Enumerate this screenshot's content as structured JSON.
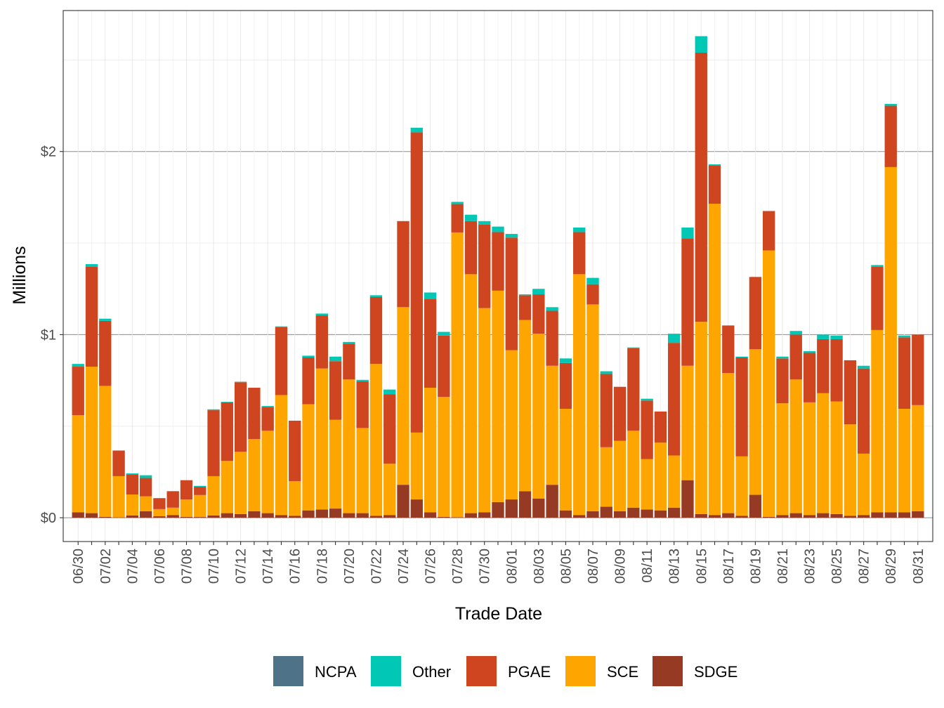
{
  "chart_data": {
    "type": "bar",
    "stacked": true,
    "xlabel": "Trade Date",
    "ylabel": "Millions",
    "ylim": [
      -0.13,
      2.77
    ],
    "yticks": [
      0,
      1,
      2
    ],
    "ytick_labels": [
      "$0",
      "$1",
      "$2"
    ],
    "grid": true,
    "legend_position": "bottom",
    "categories": [
      "06/30",
      "07/01",
      "07/02",
      "07/03",
      "07/04",
      "07/05",
      "07/06",
      "07/07",
      "07/08",
      "07/09",
      "07/10",
      "07/11",
      "07/12",
      "07/13",
      "07/14",
      "07/15",
      "07/16",
      "07/17",
      "07/18",
      "07/19",
      "07/20",
      "07/21",
      "07/22",
      "07/23",
      "07/24",
      "07/25",
      "07/26",
      "07/27",
      "07/28",
      "07/29",
      "07/30",
      "07/31",
      "08/01",
      "08/02",
      "08/03",
      "08/04",
      "08/05",
      "08/06",
      "08/07",
      "08/08",
      "08/09",
      "08/10",
      "08/11",
      "08/12",
      "08/13",
      "08/14",
      "08/15",
      "08/16",
      "08/17",
      "08/18",
      "08/19",
      "08/20",
      "08/21",
      "08/22",
      "08/23",
      "08/24",
      "08/25",
      "08/26",
      "08/27",
      "08/28",
      "08/29",
      "08/30",
      "08/31"
    ],
    "tick_labels": [
      "06/30",
      "07/02",
      "07/04",
      "07/06",
      "07/08",
      "07/10",
      "07/12",
      "07/14",
      "07/16",
      "07/18",
      "07/20",
      "07/22",
      "07/24",
      "07/26",
      "07/28",
      "07/30",
      "08/01",
      "08/03",
      "08/05",
      "08/07",
      "08/09",
      "08/11",
      "08/13",
      "08/15",
      "08/17",
      "08/19",
      "08/21",
      "08/23",
      "08/25",
      "08/27",
      "08/29",
      "08/31"
    ],
    "series": [
      {
        "name": "NCPA",
        "color": "#4e7389",
        "values": [
          0,
          0,
          0,
          0,
          0,
          0,
          0,
          0,
          0,
          0,
          0,
          0,
          0,
          0,
          0,
          0,
          0,
          0,
          0,
          0,
          0,
          0,
          0,
          0,
          0,
          0,
          0,
          0,
          0,
          0,
          0,
          0,
          0,
          0,
          0,
          0,
          0,
          0,
          0,
          0,
          0,
          0,
          0,
          0,
          0,
          0,
          0,
          0,
          0,
          0,
          0,
          0,
          0,
          0,
          0,
          0,
          0,
          0,
          0,
          0,
          0,
          0,
          0
        ]
      },
      {
        "name": "SDGE",
        "color": "#973a24",
        "values": [
          0.03,
          0.025,
          0.005,
          0.002,
          0.012,
          0.035,
          0.008,
          0.015,
          0.005,
          0.004,
          0.012,
          0.025,
          0.02,
          0.035,
          0.025,
          0.015,
          0.01,
          0.04,
          0.045,
          0.05,
          0.025,
          0.025,
          0.01,
          0.015,
          0.18,
          0.1,
          0.03,
          0.005,
          0.003,
          0.025,
          0.03,
          0.085,
          0.1,
          0.145,
          0.105,
          0.18,
          0.04,
          0.015,
          0.035,
          0.06,
          0.035,
          0.055,
          0.045,
          0.04,
          0.055,
          0.205,
          0.02,
          0.015,
          0.025,
          0.01,
          0.125,
          0.005,
          0.015,
          0.025,
          0.015,
          0.025,
          0.02,
          0.01,
          0.015,
          0.03,
          0.03,
          0.03,
          0.035
        ]
      },
      {
        "name": "SCE",
        "color": "#ffa500",
        "values": [
          0.53,
          0.8,
          0.715,
          0.225,
          0.115,
          0.082,
          0.039,
          0.04,
          0.095,
          0.12,
          0.215,
          0.285,
          0.34,
          0.395,
          0.45,
          0.655,
          0.19,
          0.58,
          0.77,
          0.485,
          0.73,
          0.465,
          0.83,
          0.28,
          0.97,
          0.365,
          0.68,
          0.655,
          1.555,
          1.305,
          1.115,
          1.155,
          0.815,
          0.935,
          0.9,
          0.65,
          0.555,
          1.315,
          1.13,
          0.325,
          0.385,
          0.42,
          0.275,
          0.37,
          0.285,
          0.625,
          1.05,
          1.7,
          0.765,
          0.325,
          0.795,
          1.455,
          0.61,
          0.73,
          0.615,
          0.655,
          0.615,
          0.5,
          0.335,
          0.995,
          1.885,
          0.565,
          0.58
        ]
      },
      {
        "name": "PGAE",
        "color": "#cf4520",
        "values": [
          0.265,
          0.545,
          0.355,
          0.14,
          0.11,
          0.1,
          0.06,
          0.09,
          0.105,
          0.045,
          0.36,
          0.32,
          0.38,
          0.28,
          0.13,
          0.37,
          0.33,
          0.255,
          0.29,
          0.32,
          0.195,
          0.255,
          0.365,
          0.38,
          0.47,
          1.64,
          0.485,
          0.335,
          0.155,
          0.29,
          0.455,
          0.32,
          0.615,
          0.135,
          0.215,
          0.3,
          0.25,
          0.23,
          0.11,
          0.4,
          0.295,
          0.45,
          0.32,
          0.17,
          0.615,
          0.695,
          1.47,
          0.21,
          0.26,
          0.54,
          0.395,
          0.215,
          0.245,
          0.245,
          0.27,
          0.295,
          0.34,
          0.35,
          0.465,
          0.345,
          0.335,
          0.39,
          0.385
        ]
      },
      {
        "name": "Other",
        "color": "#00c8b4",
        "values": [
          0.015,
          0.015,
          0.012,
          0,
          0.005,
          0.015,
          0,
          0,
          0,
          0.005,
          0.005,
          0.003,
          0.003,
          0,
          0.005,
          0.005,
          0,
          0.01,
          0.01,
          0.025,
          0.01,
          0.008,
          0.01,
          0.025,
          0,
          0.025,
          0.035,
          0.02,
          0.012,
          0.035,
          0.02,
          0.03,
          0.02,
          0.005,
          0.03,
          0.02,
          0.025,
          0.025,
          0.035,
          0.015,
          0,
          0.005,
          0.01,
          0,
          0.05,
          0.06,
          0.09,
          0.005,
          0,
          0.005,
          0,
          0,
          0.01,
          0.02,
          0.01,
          0.025,
          0.02,
          0,
          0.015,
          0.01,
          0.01,
          0.01,
          0
        ]
      }
    ]
  }
}
